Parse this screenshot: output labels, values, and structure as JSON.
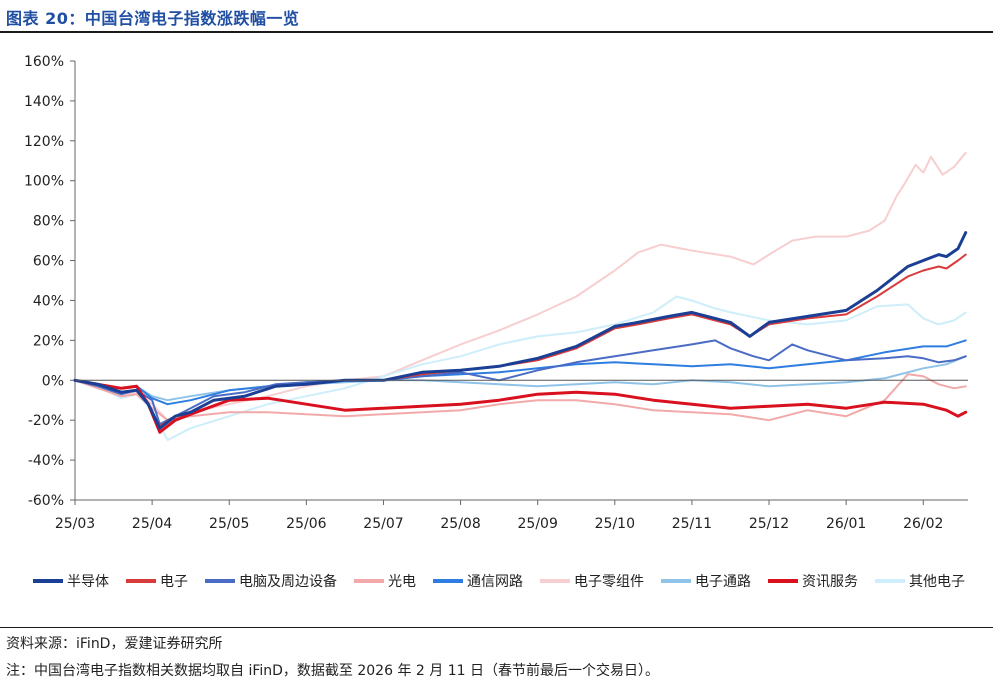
{
  "figure": {
    "title": "图表 20：中国台湾电子指数涨跌幅一览",
    "source": "资料来源：iFinD，爱建证券研究所",
    "note": "注：中国台湾电子指数相关数据均取自 iFinD，数据截至 2026 年 2 月 11 日（春节前最后一个交易日）。"
  },
  "chart_data": {
    "type": "line",
    "title": "中国台湾电子指数涨跌幅一览",
    "xlabel": "",
    "ylabel": "",
    "ylim": [
      -60,
      160
    ],
    "yticks": [
      -60,
      -40,
      -20,
      0,
      20,
      40,
      60,
      80,
      100,
      120,
      140,
      160
    ],
    "ytick_labels": [
      "-60%",
      "-40%",
      "-20%",
      "0%",
      "20%",
      "40%",
      "60%",
      "80%",
      "100%",
      "120%",
      "140%",
      "160%"
    ],
    "xlim": [
      0,
      11.58
    ],
    "xticks": [
      0,
      1,
      2,
      3,
      4,
      5,
      6,
      7,
      8,
      9,
      10,
      11
    ],
    "xtick_labels": [
      "25/03",
      "25/04",
      "25/05",
      "25/06",
      "25/07",
      "25/08",
      "25/09",
      "25/10",
      "25/11",
      "25/12",
      "26/01",
      "26/02"
    ],
    "grid": false,
    "legend_position": "bottom",
    "x_unit": "months since 2025-03",
    "series": [
      {
        "name": "半导体",
        "color": "#1a3f94",
        "width": 3,
        "x": [
          0,
          0.3,
          0.6,
          0.8,
          0.95,
          1.1,
          1.3,
          1.5,
          1.8,
          2.2,
          2.6,
          3.0,
          3.5,
          4.0,
          4.5,
          5.0,
          5.5,
          6.0,
          6.5,
          7.0,
          7.3,
          7.7,
          8.0,
          8.2,
          8.5,
          8.75,
          9.0,
          9.5,
          10.0,
          10.4,
          10.8,
          11.0,
          11.2,
          11.3,
          11.45,
          11.55
        ],
        "values": [
          0,
          -2,
          -6,
          -5,
          -12,
          -24,
          -18,
          -16,
          -10,
          -8,
          -3,
          -2,
          0,
          0,
          4,
          5,
          7,
          11,
          17,
          27,
          29,
          32,
          34,
          32,
          29,
          22,
          29,
          32,
          35,
          45,
          57,
          60,
          63,
          62,
          66,
          74
        ]
      },
      {
        "name": "电子",
        "color": "#d83b3b",
        "width": 2,
        "x": [
          0,
          0.3,
          0.6,
          0.8,
          0.95,
          1.1,
          1.3,
          1.5,
          1.8,
          2.2,
          2.6,
          3.0,
          3.5,
          4.0,
          4.5,
          5.0,
          5.5,
          6.0,
          6.5,
          7.0,
          7.3,
          7.7,
          8.0,
          8.2,
          8.5,
          8.75,
          9.0,
          9.5,
          10.0,
          10.4,
          10.8,
          11.0,
          11.2,
          11.3,
          11.45,
          11.55
        ],
        "values": [
          0,
          -2,
          -6,
          -5,
          -12,
          -23,
          -18,
          -16,
          -10,
          -8,
          -3,
          -2,
          0,
          0,
          3,
          5,
          7,
          10,
          16,
          26,
          28,
          31,
          33,
          31,
          28,
          22,
          28,
          31,
          33,
          42,
          52,
          55,
          57,
          56,
          60,
          63
        ]
      },
      {
        "name": "电脑及周边设备",
        "color": "#4a6cc4",
        "width": 2,
        "x": [
          0,
          0.3,
          0.6,
          0.8,
          1.0,
          1.1,
          1.3,
          1.5,
          1.8,
          2.2,
          2.6,
          3.0,
          3.5,
          4.0,
          4.5,
          5.0,
          5.5,
          6.0,
          6.5,
          7.0,
          7.5,
          8.0,
          8.3,
          8.5,
          8.8,
          9.0,
          9.3,
          9.5,
          10.0,
          10.5,
          10.8,
          11.0,
          11.2,
          11.4,
          11.55
        ],
        "values": [
          0,
          -3,
          -7,
          -5,
          -10,
          -22,
          -18,
          -14,
          -8,
          -6,
          -2,
          -1,
          0,
          0,
          2,
          4,
          0,
          5,
          9,
          12,
          15,
          18,
          20,
          16,
          12,
          10,
          18,
          15,
          10,
          11,
          12,
          11,
          9,
          10,
          12
        ]
      },
      {
        "name": "光电",
        "color": "#f2a9a9",
        "width": 2,
        "x": [
          0,
          0.3,
          0.6,
          0.8,
          1.0,
          1.2,
          1.5,
          2.0,
          2.5,
          3.0,
          3.5,
          4.0,
          4.5,
          5.0,
          5.5,
          6.0,
          6.5,
          7.0,
          7.5,
          8.0,
          8.5,
          9.0,
          9.5,
          10.0,
          10.5,
          10.8,
          11.0,
          11.2,
          11.4,
          11.55
        ],
        "values": [
          0,
          -4,
          -8,
          -7,
          -14,
          -20,
          -18,
          -16,
          -16,
          -17,
          -18,
          -17,
          -16,
          -15,
          -12,
          -10,
          -10,
          -12,
          -15,
          -16,
          -17,
          -20,
          -15,
          -18,
          -10,
          3,
          2,
          -2,
          -4,
          -3
        ]
      },
      {
        "name": "通信网路",
        "color": "#2e7de0",
        "width": 2,
        "x": [
          0,
          0.3,
          0.6,
          0.8,
          1.0,
          1.2,
          1.5,
          2.0,
          2.5,
          3.0,
          3.5,
          4.0,
          4.5,
          5.0,
          5.5,
          6.0,
          6.5,
          7.0,
          7.5,
          8.0,
          8.5,
          9.0,
          9.5,
          10.0,
          10.5,
          11.0,
          11.3,
          11.55
        ],
        "values": [
          0,
          -2,
          -4,
          -3,
          -9,
          -12,
          -10,
          -5,
          -3,
          -1,
          0,
          0,
          2,
          3,
          4,
          6,
          8,
          9,
          8,
          7,
          8,
          6,
          8,
          10,
          14,
          17,
          17,
          20
        ]
      },
      {
        "name": "电子零组件",
        "color": "#f7cfd0",
        "width": 2,
        "x": [
          0,
          0.3,
          0.6,
          0.8,
          1.0,
          1.2,
          1.5,
          2.0,
          2.5,
          3.0,
          3.5,
          4.0,
          4.5,
          5.0,
          5.5,
          6.0,
          6.5,
          7.0,
          7.3,
          7.6,
          8.0,
          8.5,
          8.8,
          9.0,
          9.3,
          9.6,
          10.0,
          10.3,
          10.5,
          10.65,
          10.75,
          10.9,
          11.0,
          11.1,
          11.25,
          11.4,
          11.55
        ],
        "values": [
          0,
          -3,
          -8,
          -6,
          -12,
          -20,
          -16,
          -12,
          -8,
          -3,
          0,
          2,
          10,
          18,
          25,
          33,
          42,
          55,
          64,
          68,
          65,
          62,
          58,
          63,
          70,
          72,
          72,
          75,
          80,
          92,
          98,
          108,
          104,
          112,
          103,
          107,
          114
        ]
      },
      {
        "name": "电子通路",
        "color": "#8fc3e8",
        "width": 2,
        "x": [
          0,
          0.3,
          0.6,
          0.8,
          1.0,
          1.2,
          1.5,
          2.0,
          2.5,
          3.0,
          3.5,
          4.0,
          4.5,
          5.0,
          5.5,
          6.0,
          6.5,
          7.0,
          7.5,
          8.0,
          8.5,
          9.0,
          9.5,
          10.0,
          10.5,
          11.0,
          11.3,
          11.55
        ],
        "values": [
          0,
          -2,
          -4,
          -3,
          -8,
          -10,
          -8,
          -5,
          -3,
          -2,
          -1,
          0,
          0,
          -1,
          -2,
          -3,
          -2,
          -1,
          -2,
          0,
          -1,
          -3,
          -2,
          -1,
          1,
          6,
          8,
          12
        ]
      },
      {
        "name": "资讯服务",
        "color": "#d9101e",
        "width": 3,
        "x": [
          0,
          0.3,
          0.6,
          0.8,
          0.95,
          1.1,
          1.3,
          1.5,
          2.0,
          2.5,
          3.0,
          3.5,
          4.0,
          4.5,
          5.0,
          5.5,
          6.0,
          6.5,
          7.0,
          7.5,
          8.0,
          8.5,
          9.0,
          9.5,
          10.0,
          10.5,
          11.0,
          11.3,
          11.45,
          11.55
        ],
        "values": [
          0,
          -2,
          -4,
          -3,
          -12,
          -26,
          -20,
          -17,
          -10,
          -9,
          -12,
          -15,
          -14,
          -13,
          -12,
          -10,
          -7,
          -6,
          -7,
          -10,
          -12,
          -14,
          -13,
          -12,
          -14,
          -11,
          -12,
          -15,
          -18,
          -16
        ]
      },
      {
        "name": "其他电子",
        "color": "#cdeefa",
        "width": 2,
        "x": [
          0,
          0.3,
          0.6,
          0.8,
          1.0,
          1.2,
          1.5,
          2.0,
          2.5,
          3.0,
          3.5,
          4.0,
          4.5,
          5.0,
          5.5,
          6.0,
          6.5,
          7.0,
          7.5,
          7.8,
          8.0,
          8.3,
          8.5,
          9.0,
          9.5,
          10.0,
          10.4,
          10.8,
          11.0,
          11.2,
          11.4,
          11.55
        ],
        "values": [
          0,
          -3,
          -9,
          -7,
          -15,
          -30,
          -24,
          -18,
          -12,
          -8,
          -4,
          2,
          8,
          12,
          18,
          22,
          24,
          28,
          34,
          42,
          40,
          36,
          34,
          30,
          28,
          30,
          37,
          38,
          31,
          28,
          30,
          34
        ]
      }
    ]
  }
}
